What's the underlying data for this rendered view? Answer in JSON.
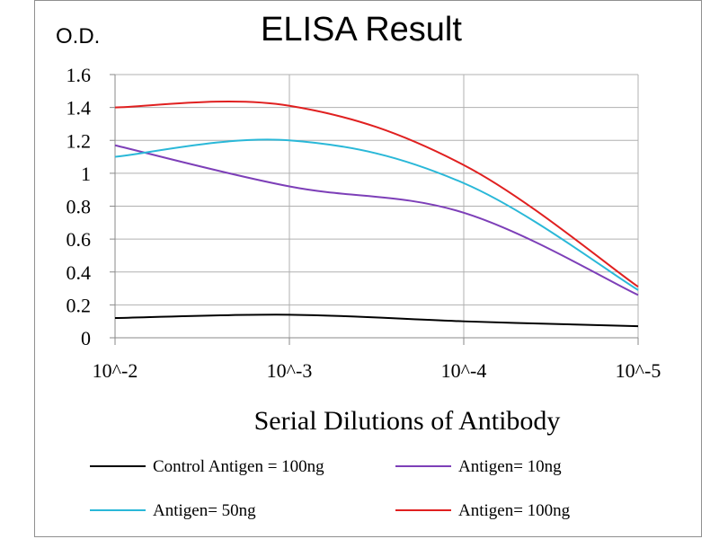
{
  "chart_data": {
    "type": "line",
    "title": "ELISA Result",
    "ylabel": "O.D.",
    "xlabel": "Serial Dilutions  of Antibody",
    "categories": [
      "10^-2",
      "10^-3",
      "10^-4",
      "10^-5"
    ],
    "ylim": [
      0,
      1.6
    ],
    "yticks": [
      0,
      0.2,
      0.4,
      0.6,
      0.8,
      1,
      1.2,
      1.4,
      1.6
    ],
    "ytick_labels": [
      "0",
      "0.2",
      "0.4",
      "0.6",
      "0.8",
      "1",
      "1.2",
      "1.4",
      "1.6"
    ],
    "grid": true,
    "legend_position": "bottom",
    "series": [
      {
        "name": "Control Antigen = 100ng",
        "color": "#000000",
        "values": [
          0.12,
          0.14,
          0.1,
          0.07
        ]
      },
      {
        "name": "Antigen= 10ng",
        "color": "#7d3fb8",
        "values": [
          1.17,
          0.92,
          0.76,
          0.26
        ]
      },
      {
        "name": "Antigen= 50ng",
        "color": "#2ab8d8",
        "values": [
          1.1,
          1.2,
          0.94,
          0.29
        ]
      },
      {
        "name": "Antigen= 100ng",
        "color": "#e02020",
        "values": [
          1.4,
          1.41,
          1.05,
          0.31
        ]
      }
    ]
  }
}
